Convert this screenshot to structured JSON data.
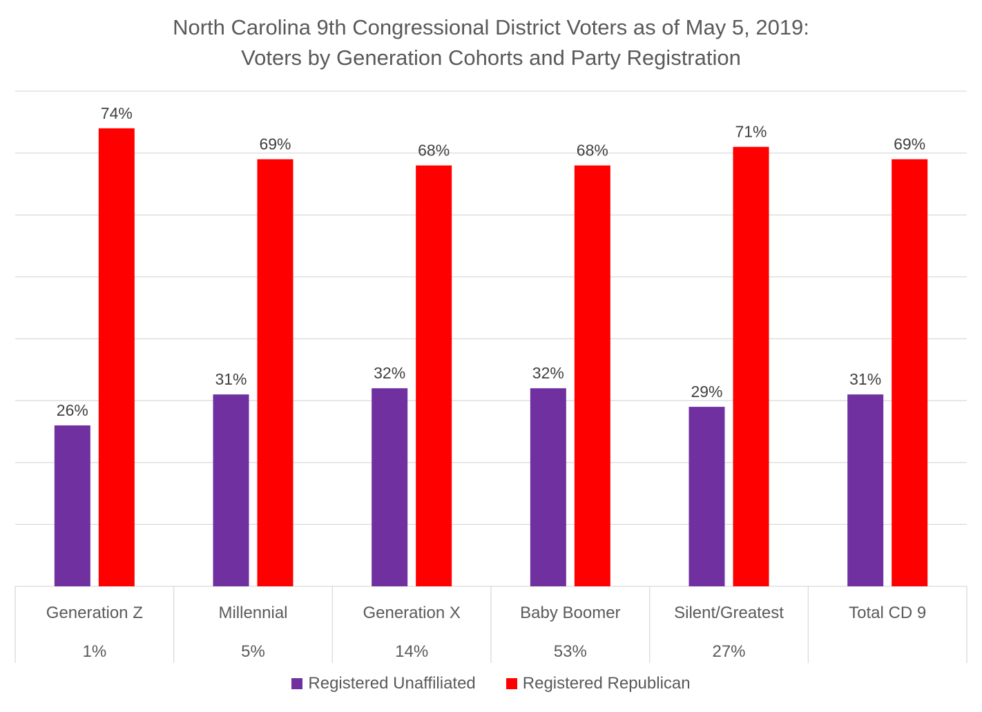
{
  "chart_data": {
    "type": "bar",
    "title": "North Carolina 9th Congressional District Voters as of May 5, 2019:",
    "subtitle": "Voters by Generation Cohorts and Party Registration",
    "categories": [
      "Generation Z",
      "Millennial",
      "Generation X",
      "Baby Boomer",
      "Silent/Greatest",
      "Total CD 9"
    ],
    "category_shares": [
      "1%",
      "5%",
      "14%",
      "53%",
      "27%",
      ""
    ],
    "series": [
      {
        "name": "Registered Unaffiliated",
        "color": "#7030a0",
        "values": [
          26,
          31,
          32,
          32,
          29,
          31
        ],
        "labels": [
          "26%",
          "31%",
          "32%",
          "32%",
          "29%",
          "31%"
        ]
      },
      {
        "name": "Registered Republican",
        "color": "#ff0000",
        "values": [
          74,
          69,
          68,
          68,
          71,
          69
        ],
        "labels": [
          "74%",
          "69%",
          "68%",
          "68%",
          "71%",
          "69%"
        ]
      }
    ],
    "ylim": [
      0,
      80
    ],
    "gridlines": true,
    "y_axis_labels_shown": false,
    "legend_position": "bottom",
    "data_labels": true
  }
}
